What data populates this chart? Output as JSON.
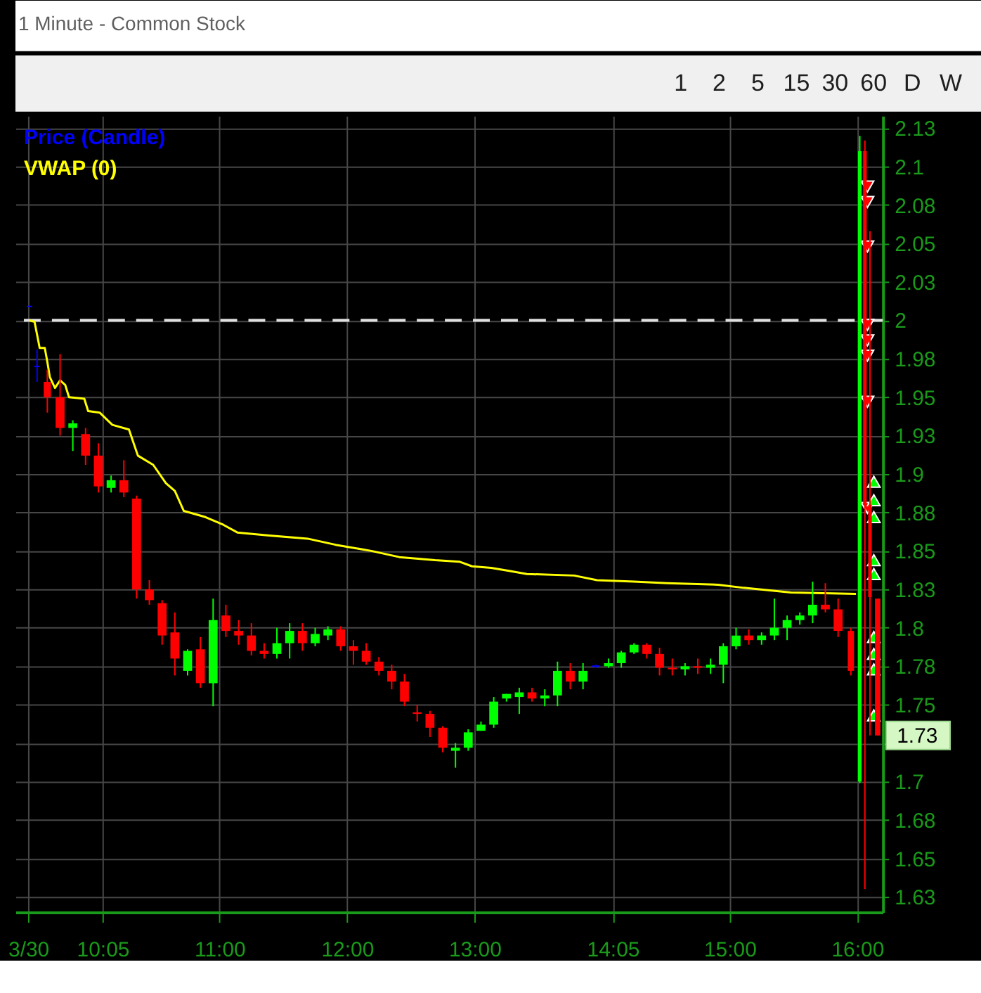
{
  "chart_data": {
    "type": "candlestick",
    "title": "1 Minute - Common Stock",
    "annotations": [
      "1",
      "2",
      "5",
      "15",
      "30",
      "60",
      "D",
      "W",
      {
        "text": "1.73",
        "x": 16.16,
        "y": 1.73
      }
    ],
    "series": [
      {
        "name": "Price (Candle)",
        "color": "#0000ff",
        "x": [
          9.51,
          9.57,
          9.65,
          9.75,
          9.85,
          9.95,
          10.05,
          10.15,
          10.25,
          10.35,
          10.45,
          10.55,
          10.65,
          10.75,
          10.85,
          10.95,
          11.05,
          11.15,
          11.25,
          11.35,
          11.45,
          11.55,
          11.65,
          11.75,
          11.85,
          11.95,
          12.05,
          12.15,
          12.25,
          12.35,
          12.45,
          12.55,
          12.65,
          12.75,
          12.85,
          12.95,
          13.05,
          13.15,
          13.25,
          13.35,
          13.45,
          13.55,
          13.65,
          13.75,
          13.85,
          13.95,
          14.05,
          14.15,
          14.25,
          14.35,
          14.45,
          14.55,
          14.65,
          14.75,
          14.85,
          14.95,
          15.05,
          15.15,
          15.25,
          15.35,
          15.45,
          15.55,
          15.65,
          15.75,
          15.85,
          15.95,
          16.02,
          16.06,
          16.1,
          16.16
        ],
        "ohlc": [
          [
            2.009,
            2.009,
            2.009,
            2.009
          ],
          [
            1.97,
            1.981,
            1.96,
            1.97
          ],
          [
            1.96,
            1.968,
            1.94,
            1.95
          ],
          [
            1.95,
            1.978,
            1.925,
            1.93
          ],
          [
            1.93,
            1.935,
            1.915,
            1.933
          ],
          [
            1.926,
            1.93,
            1.906,
            1.912
          ],
          [
            1.912,
            1.92,
            1.888,
            1.892
          ],
          [
            1.891,
            1.899,
            1.888,
            1.896
          ],
          [
            1.896,
            1.909,
            1.885,
            1.888
          ],
          [
            1.884,
            1.886,
            1.819,
            1.825
          ],
          [
            1.825,
            1.831,
            1.815,
            1.818
          ],
          [
            1.816,
            1.818,
            1.789,
            1.795
          ],
          [
            1.797,
            1.81,
            1.769,
            1.78
          ],
          [
            1.772,
            1.786,
            1.769,
            1.785
          ],
          [
            1.786,
            1.794,
            1.761,
            1.764
          ],
          [
            1.764,
            1.819,
            1.749,
            1.805
          ],
          [
            1.808,
            1.815,
            1.794,
            1.798
          ],
          [
            1.798,
            1.805,
            1.789,
            1.795
          ],
          [
            1.795,
            1.803,
            1.782,
            1.785
          ],
          [
            1.785,
            1.79,
            1.78,
            1.783
          ],
          [
            1.783,
            1.8,
            1.78,
            1.79
          ],
          [
            1.79,
            1.803,
            1.78,
            1.798
          ],
          [
            1.798,
            1.803,
            1.785,
            1.79
          ],
          [
            1.79,
            1.8,
            1.788,
            1.796
          ],
          [
            1.795,
            1.801,
            1.792,
            1.799
          ],
          [
            1.799,
            1.801,
            1.785,
            1.788
          ],
          [
            1.788,
            1.792,
            1.776,
            1.785
          ],
          [
            1.785,
            1.79,
            1.776,
            1.778
          ],
          [
            1.778,
            1.781,
            1.769,
            1.772
          ],
          [
            1.772,
            1.776,
            1.76,
            1.765
          ],
          [
            1.765,
            1.77,
            1.749,
            1.752
          ],
          [
            1.745,
            1.75,
            1.739,
            1.744
          ],
          [
            1.744,
            1.746,
            1.729,
            1.735
          ],
          [
            1.735,
            1.736,
            1.719,
            1.722
          ],
          [
            1.72,
            1.725,
            1.709,
            1.722
          ],
          [
            1.722,
            1.734,
            1.72,
            1.732
          ],
          [
            1.733,
            1.739,
            1.733,
            1.737
          ],
          [
            1.737,
            1.755,
            1.735,
            1.752
          ],
          [
            1.754,
            1.757,
            1.752,
            1.757
          ],
          [
            1.755,
            1.761,
            1.744,
            1.758
          ],
          [
            1.758,
            1.761,
            1.752,
            1.754
          ],
          [
            1.754,
            1.76,
            1.749,
            1.756
          ],
          [
            1.756,
            1.778,
            1.749,
            1.772
          ],
          [
            1.772,
            1.777,
            1.76,
            1.765
          ],
          [
            1.765,
            1.777,
            1.76,
            1.772
          ],
          [
            1.775,
            1.776,
            1.774,
            1.775
          ],
          [
            1.775,
            1.78,
            1.774,
            1.777
          ],
          [
            1.777,
            1.785,
            1.774,
            1.784
          ],
          [
            1.784,
            1.79,
            1.783,
            1.789
          ],
          [
            1.789,
            1.79,
            1.78,
            1.783
          ],
          [
            1.783,
            1.787,
            1.769,
            1.774
          ],
          [
            1.774,
            1.78,
            1.769,
            1.773
          ],
          [
            1.773,
            1.777,
            1.769,
            1.775
          ],
          [
            1.775,
            1.78,
            1.77,
            1.774
          ],
          [
            1.774,
            1.78,
            1.77,
            1.776
          ],
          [
            1.776,
            1.79,
            1.764,
            1.788
          ],
          [
            1.788,
            1.8,
            1.786,
            1.795
          ],
          [
            1.795,
            1.799,
            1.789,
            1.792
          ],
          [
            1.792,
            1.797,
            1.789,
            1.795
          ],
          [
            1.795,
            1.819,
            1.792,
            1.8
          ],
          [
            1.8,
            1.808,
            1.792,
            1.805
          ],
          [
            1.805,
            1.81,
            1.802,
            1.808
          ],
          [
            1.808,
            1.83,
            1.803,
            1.815
          ],
          [
            1.815,
            1.829,
            1.81,
            1.812
          ],
          [
            1.812,
            1.819,
            1.794,
            1.798
          ],
          [
            1.798,
            1.8,
            1.769,
            1.772
          ],
          [
            1.7,
            2.12,
            1.699,
            2.11
          ],
          [
            2.11,
            2.117,
            1.63,
            1.88
          ],
          [
            1.88,
            2.058,
            1.73,
            1.82
          ],
          [
            1.819,
            1.819,
            1.73,
            1.73
          ]
        ],
        "colors": [
          "#0000ff",
          "#0000ff",
          "#ff0000",
          "#ff0000",
          "#00ff00",
          "#ff0000",
          "#ff0000",
          "#00ff00",
          "#ff0000",
          "#ff0000",
          "#ff0000",
          "#ff0000",
          "#ff0000",
          "#00ff00",
          "#ff0000",
          "#00ff00",
          "#ff0000",
          "#ff0000",
          "#ff0000",
          "#ff0000",
          "#00ff00",
          "#00ff00",
          "#ff0000",
          "#00ff00",
          "#00ff00",
          "#ff0000",
          "#ff0000",
          "#ff0000",
          "#ff0000",
          "#ff0000",
          "#ff0000",
          "#ff0000",
          "#ff0000",
          "#ff0000",
          "#00ff00",
          "#00ff00",
          "#00ff00",
          "#00ff00",
          "#00ff00",
          "#00ff00",
          "#ff0000",
          "#00ff00",
          "#00ff00",
          "#ff0000",
          "#00ff00",
          "#0000ff",
          "#00ff00",
          "#00ff00",
          "#00ff00",
          "#ff0000",
          "#ff0000",
          "#ff0000",
          "#00ff00",
          "#ff0000",
          "#00ff00",
          "#00ff00",
          "#00ff00",
          "#ff0000",
          "#00ff00",
          "#00ff00",
          "#00ff00",
          "#00ff00",
          "#00ff00",
          "#ff0000",
          "#ff0000",
          "#ff0000",
          "#00ff00",
          "#ff0000",
          "#ff0000",
          "#ff0000"
        ]
      },
      {
        "name": "VWAP (0)",
        "type": "line",
        "color": "#ffff00",
        "x": [
          9.51,
          9.55,
          9.59,
          9.63,
          9.65,
          9.67,
          9.71,
          9.75,
          9.79,
          9.82,
          9.94,
          9.97,
          10.06,
          10.16,
          10.29,
          10.36,
          10.48,
          10.58,
          10.65,
          10.72,
          10.89,
          11.03,
          11.14,
          11.39,
          11.69,
          11.91,
          12.19,
          12.41,
          12.69,
          12.88,
          12.98,
          13.13,
          13.27,
          13.41,
          13.78,
          13.96,
          14.25,
          14.51,
          14.91,
          15.11,
          15.48,
          15.99
        ],
        "values": [
          2.0,
          1.999,
          1.982,
          1.982,
          1.973,
          1.963,
          1.956,
          1.961,
          1.958,
          1.95,
          1.949,
          1.941,
          1.94,
          1.932,
          1.929,
          1.912,
          1.906,
          1.894,
          1.889,
          1.876,
          1.872,
          1.867,
          1.862,
          1.86,
          1.858,
          1.854,
          1.85,
          1.846,
          1.844,
          1.843,
          1.84,
          1.839,
          1.837,
          1.835,
          1.834,
          1.831,
          1.83,
          1.829,
          1.828,
          1.826,
          1.823,
          1.822
        ]
      },
      {
        "type": "scatter",
        "marker": "triangle-down",
        "color": "#ff0000",
        "x": [
          16.08,
          16.08,
          16.08,
          16.08,
          16.08,
          16.08,
          16.08,
          16.08
        ],
        "values": [
          2.087,
          2.077,
          2.048,
          1.997,
          1.987,
          1.977,
          1.947,
          1.878
        ]
      },
      {
        "type": "scatter",
        "marker": "triangle",
        "color": "#00ff00",
        "x": [
          16.13,
          16.13,
          16.13,
          16.13,
          16.13,
          16.13,
          16.13,
          16.13,
          16.13
        ],
        "values": [
          1.895,
          1.883,
          1.872,
          1.844,
          1.835,
          1.794,
          1.783,
          1.773,
          1.743
        ]
      }
    ],
    "xlim": [
      9.4,
      16.2
    ],
    "xticks": [
      {
        "value": 9.5,
        "label": "3/30"
      },
      {
        "value": 10.0833,
        "label": "10:05"
      },
      {
        "value": 11,
        "label": "11:00"
      },
      {
        "value": 12,
        "label": "12:00"
      },
      {
        "value": 13,
        "label": "13:00"
      },
      {
        "value": 14.0833,
        "label": "14:05"
      },
      {
        "value": 15,
        "label": "15:00"
      },
      {
        "value": 16,
        "label": "16:00"
      }
    ],
    "ylim": [
      1.615,
      2.133
    ],
    "yticks": [
      {
        "value": 2.125,
        "label": "2.13"
      },
      2.1,
      {
        "value": 2.075,
        "label": "2.08"
      },
      2.05,
      {
        "value": 2.025,
        "label": "2.03"
      },
      2,
      {
        "value": 1.975,
        "label": "1.98"
      },
      1.95,
      {
        "value": 1.925,
        "label": "1.93"
      },
      1.9,
      {
        "value": 1.875,
        "label": "1.88"
      },
      1.85,
      {
        "value": 1.825,
        "label": "1.83"
      },
      1.8,
      {
        "value": 1.775,
        "label": "1.78"
      },
      1.75,
      {
        "value": 1.725,
        "label": null
      },
      1.7,
      {
        "value": 1.675,
        "label": "1.68"
      },
      1.65,
      {
        "value": 1.625,
        "label": "1.63"
      }
    ],
    "ref_lines": [
      {
        "axis": "y",
        "value": 2,
        "color": "#e0e0e0",
        "line_style": "dashed"
      }
    ],
    "grid": true,
    "legend": "top left"
  }
}
